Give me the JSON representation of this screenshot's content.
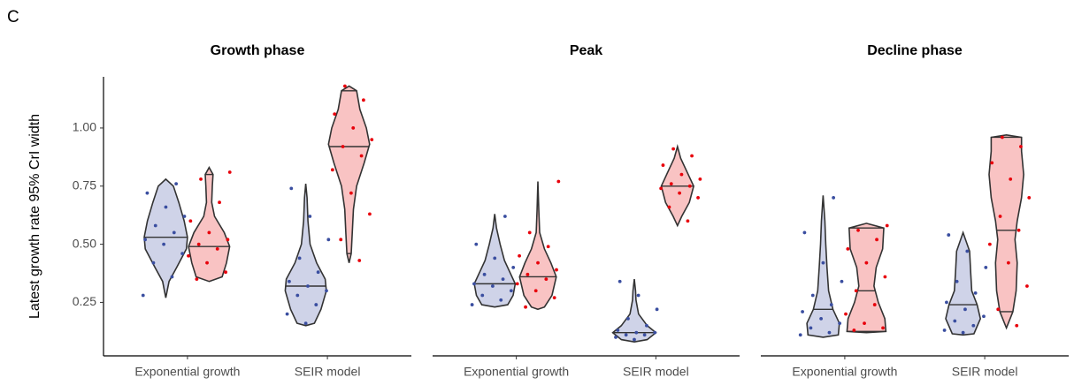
{
  "panel_label": "C",
  "chart_data": [
    {
      "type": "violin",
      "title": "Growth phase",
      "ylabel": "Latest growth rate 95% CrI width",
      "categories": [
        "Exponential growth",
        "SEIR model"
      ],
      "ylim": [
        0.02,
        1.22
      ],
      "yticks": [
        0.25,
        {
          "value": 0.5,
          "label": "0.50"
        },
        0.75,
        {
          "value": 1,
          "label": "1.00"
        }
      ],
      "series": [
        {
          "color": "#3a4ea0",
          "fill": "#cfd3e8",
          "groups": [
            {
              "points": [
                0.28,
                0.36,
                0.42,
                0.46,
                0.5,
                0.52,
                0.55,
                0.58,
                0.62,
                0.66,
                0.72,
                0.76
              ],
              "quantiles": [
                0.53
              ],
              "density": {
                "y": [
                  0.27,
                  0.34,
                  0.4,
                  0.48,
                  0.53,
                  0.6,
                  0.68,
                  0.75,
                  0.78
                ],
                "width": [
                  0,
                  0.15,
                  0.5,
                  0.95,
                  1,
                  0.85,
                  0.6,
                  0.35,
                  0
                ]
              }
            },
            {
              "points": [
                0.16,
                0.2,
                0.24,
                0.28,
                0.3,
                0.32,
                0.34,
                0.38,
                0.44,
                0.52,
                0.62,
                0.74
              ],
              "quantiles": [
                0.32
              ],
              "density": {
                "y": [
                  0.15,
                  0.16,
                  0.22,
                  0.3,
                  0.35,
                  0.42,
                  0.5,
                  0.6,
                  0.7,
                  0.76
                ],
                "width": [
                  0,
                  0.4,
                  0.7,
                  0.95,
                  0.9,
                  0.5,
                  0.2,
                  0.1,
                  0.06,
                  0
                ]
              }
            }
          ]
        },
        {
          "color": "#e8000b",
          "fill": "#f9c3c3",
          "groups": [
            {
              "points": [
                0.35,
                0.38,
                0.42,
                0.45,
                0.48,
                0.5,
                0.52,
                0.55,
                0.6,
                0.68,
                0.78,
                0.81
              ],
              "quantiles": [
                0.49,
                0.8
              ],
              "density": {
                "y": [
                  0.34,
                  0.36,
                  0.42,
                  0.49,
                  0.55,
                  0.62,
                  0.68,
                  0.75,
                  0.8,
                  0.83
                ],
                "width": [
                  0,
                  0.6,
                  0.8,
                  0.95,
                  0.7,
                  0.25,
                  0.12,
                  0.15,
                  0.18,
                  0
                ]
              }
            },
            {
              "points": [
                0.43,
                0.52,
                0.63,
                0.72,
                0.82,
                0.88,
                0.92,
                0.95,
                1.0,
                1.06,
                1.12,
                1.18
              ],
              "quantiles": [
                0.46,
                0.92,
                1.16
              ],
              "density": {
                "y": [
                  0.42,
                  0.46,
                  0.55,
                  0.65,
                  0.75,
                  0.85,
                  0.93,
                  1.0,
                  1.08,
                  1.16,
                  1.18
                ],
                "width": [
                  0,
                  0.1,
                  0.15,
                  0.2,
                  0.35,
                  0.7,
                  0.95,
                  0.8,
                  0.5,
                  0.35,
                  0
                ]
              }
            }
          ]
        }
      ]
    },
    {
      "type": "violin",
      "title": "Peak",
      "categories": [
        "Exponential growth",
        "SEIR model"
      ],
      "series": [
        {
          "color": "#3a4ea0",
          "fill": "#cfd3e8",
          "groups": [
            {
              "points": [
                0.24,
                0.26,
                0.28,
                0.3,
                0.32,
                0.33,
                0.35,
                0.37,
                0.4,
                0.44,
                0.5,
                0.62
              ],
              "quantiles": [
                0.33
              ],
              "density": {
                "y": [
                  0.23,
                  0.24,
                  0.28,
                  0.33,
                  0.38,
                  0.43,
                  0.5,
                  0.57,
                  0.63
                ],
                "width": [
                  0,
                  0.6,
                  0.85,
                  0.95,
                  0.7,
                  0.45,
                  0.25,
                  0.08,
                  0
                ]
              }
            },
            {
              "points": [
                0.09,
                0.1,
                0.11,
                0.11,
                0.12,
                0.12,
                0.13,
                0.15,
                0.18,
                0.22,
                0.28,
                0.34
              ],
              "quantiles": [
                0.12
              ],
              "density": {
                "y": [
                  0.08,
                  0.09,
                  0.12,
                  0.15,
                  0.2,
                  0.26,
                  0.3,
                  0.35
                ],
                "width": [
                  0,
                  0.6,
                  1,
                  0.6,
                  0.2,
                  0.08,
                  0.06,
                  0
                ]
              }
            }
          ]
        },
        {
          "color": "#e8000b",
          "fill": "#f9c3c3",
          "groups": [
            {
              "points": [
                0.23,
                0.27,
                0.3,
                0.33,
                0.35,
                0.37,
                0.39,
                0.42,
                0.45,
                0.49,
                0.55,
                0.77
              ],
              "quantiles": [
                0.36
              ],
              "density": {
                "y": [
                  0.22,
                  0.23,
                  0.28,
                  0.36,
                  0.42,
                  0.48,
                  0.55,
                  0.65,
                  0.77
                ],
                "width": [
                  0,
                  0.3,
                  0.65,
                  0.85,
                  0.6,
                  0.3,
                  0.08,
                  0.04,
                  0
                ]
              }
            },
            {
              "points": [
                0.6,
                0.66,
                0.7,
                0.72,
                0.74,
                0.75,
                0.76,
                0.78,
                0.8,
                0.84,
                0.88,
                0.91
              ],
              "quantiles": [
                0.75
              ],
              "density": {
                "y": [
                  0.58,
                  0.62,
                  0.68,
                  0.75,
                  0.82,
                  0.87,
                  0.92
                ],
                "width": [
                  0,
                  0.2,
                  0.55,
                  0.75,
                  0.4,
                  0.15,
                  0
                ]
              }
            }
          ]
        }
      ]
    },
    {
      "type": "violin",
      "title": "Decline phase",
      "categories": [
        "Exponential growth",
        "SEIR model"
      ],
      "series": [
        {
          "color": "#3a4ea0",
          "fill": "#cfd3e8",
          "groups": [
            {
              "points": [
                0.11,
                0.12,
                0.14,
                0.16,
                0.18,
                0.21,
                0.24,
                0.28,
                0.34,
                0.42,
                0.55,
                0.7
              ],
              "quantiles": [
                0.22
              ],
              "density": {
                "y": [
                  0.1,
                  0.11,
                  0.16,
                  0.22,
                  0.3,
                  0.4,
                  0.5,
                  0.6,
                  0.71
                ],
                "width": [
                  0,
                  0.7,
                  0.75,
                  0.45,
                  0.25,
                  0.18,
                  0.12,
                  0.08,
                  0
                ]
              }
            },
            {
              "points": [
                0.12,
                0.13,
                0.15,
                0.17,
                0.19,
                0.22,
                0.25,
                0.29,
                0.34,
                0.4,
                0.47,
                0.54
              ],
              "quantiles": [
                0.24
              ],
              "density": {
                "y": [
                  0.11,
                  0.115,
                  0.18,
                  0.24,
                  0.3,
                  0.38,
                  0.47,
                  0.55
                ],
                "width": [
                  0,
                  0.5,
                  0.8,
                  0.65,
                  0.4,
                  0.35,
                  0.3,
                  0
                ]
              }
            }
          ]
        },
        {
          "color": "#e8000b",
          "fill": "#f9c3c3",
          "groups": [
            {
              "points": [
                0.13,
                0.14,
                0.16,
                0.2,
                0.24,
                0.3,
                0.36,
                0.42,
                0.48,
                0.52,
                0.56,
                0.58
              ],
              "quantiles": [
                0.125,
                0.3,
                0.57
              ],
              "density": {
                "y": [
                  0.12,
                  0.125,
                  0.18,
                  0.25,
                  0.32,
                  0.4,
                  0.48,
                  0.57,
                  0.59
                ],
                "width": [
                  0,
                  0.9,
                  0.85,
                  0.55,
                  0.35,
                  0.45,
                  0.75,
                  0.8,
                  0
                ]
              }
            },
            {
              "points": [
                0.15,
                0.22,
                0.32,
                0.42,
                0.5,
                0.56,
                0.62,
                0.7,
                0.78,
                0.85,
                0.92,
                0.96
              ],
              "quantiles": [
                0.21,
                0.56,
                0.96
              ],
              "density": {
                "y": [
                  0.14,
                  0.21,
                  0.3,
                  0.42,
                  0.52,
                  0.6,
                  0.7,
                  0.8,
                  0.9,
                  0.96,
                  0.97
                ],
                "width": [
                  0,
                  0.3,
                  0.45,
                  0.5,
                  0.4,
                  0.5,
                  0.7,
                  0.8,
                  0.7,
                  0.7,
                  0
                ]
              }
            }
          ]
        }
      ]
    }
  ]
}
